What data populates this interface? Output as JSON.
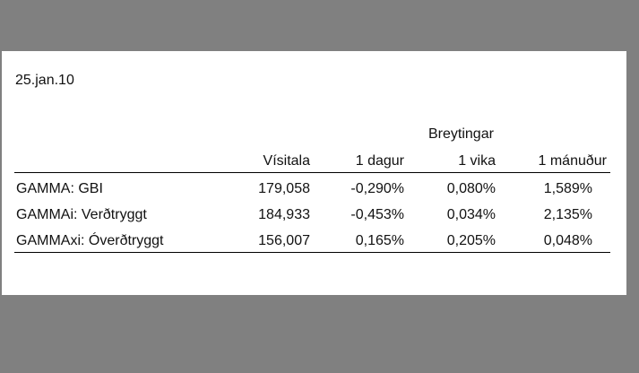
{
  "date": "25.jan.10",
  "group_header": "Breytingar",
  "columns": [
    "Vísitala",
    "1 dagur",
    "1 vika",
    "1 mánuður"
  ],
  "rows": [
    {
      "name": "GAMMA: GBI",
      "visitala": "179,058",
      "dagur": "-0,290%",
      "vika": "0,080%",
      "manudur": "1,589%"
    },
    {
      "name": "GAMMAi: Verðtryggt",
      "visitala": "184,933",
      "dagur": "-0,453%",
      "vika": "0,034%",
      "manudur": "2,135%"
    },
    {
      "name": "GAMMAxi: Óverðtryggt",
      "visitala": "156,007",
      "dagur": "0,165%",
      "vika": "0,205%",
      "manudur": "0,048%"
    }
  ]
}
